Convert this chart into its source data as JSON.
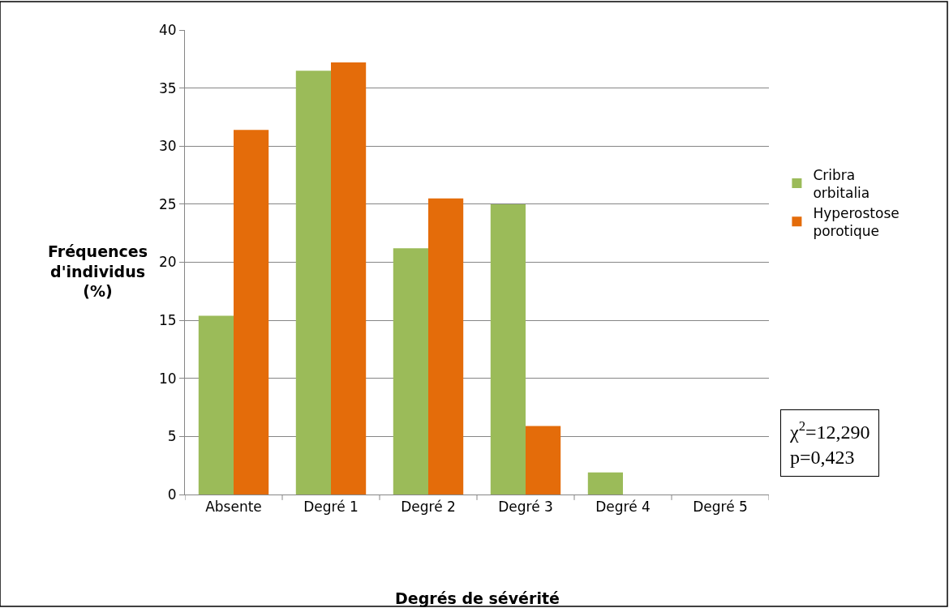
{
  "chart_data": {
    "type": "bar",
    "xlabel": "Degrés de sévérité",
    "ylabel": "Fréquences d'individus (%)",
    "categories": [
      "Absente",
      "Degré 1",
      "Degré 2",
      "Degré 3",
      "Degré 4",
      "Degré 5"
    ],
    "series": [
      {
        "name": "Cribra orbitalia",
        "color": "#9bbb59",
        "values": [
          15.4,
          36.5,
          21.2,
          25.0,
          1.9,
          0
        ]
      },
      {
        "name": "Hyperostose porotique",
        "color": "#e46c0a",
        "values": [
          31.4,
          37.2,
          25.5,
          5.9,
          0,
          0
        ]
      }
    ],
    "ylim": [
      0,
      40
    ],
    "yticks": [
      0,
      5,
      10,
      15,
      20,
      25,
      30,
      35,
      40
    ],
    "grid": "y",
    "legend": "right",
    "annotations": [
      "χ$^{2}$=12,290\np=0,423"
    ]
  }
}
